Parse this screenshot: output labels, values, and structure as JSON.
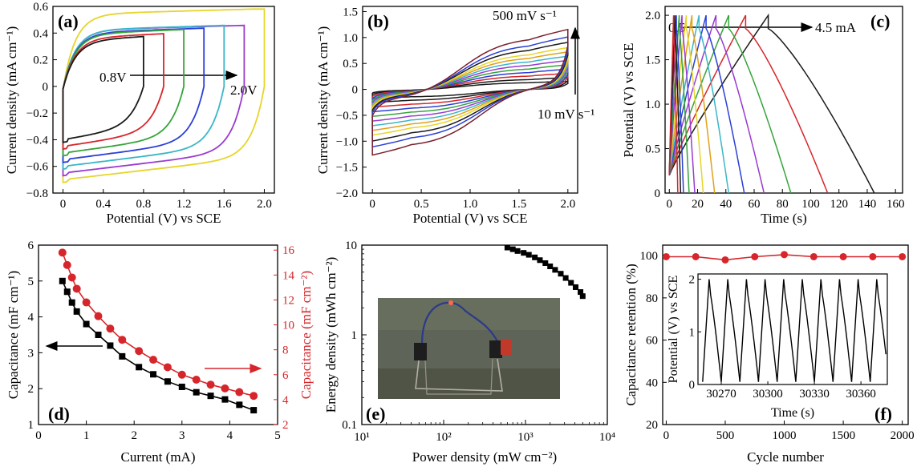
{
  "chart_data": [
    {
      "panel": "(a)",
      "type": "line",
      "xlabel": "Potential (V) vs SCE",
      "ylabel": "Current density (mA cm⁻¹)",
      "xlim": [
        -0.1,
        2.1
      ],
      "ylim": [
        -0.8,
        0.6
      ],
      "xticks": [
        "0",
        "0.4",
        "0.8",
        "1.2",
        "1.6",
        "2.0"
      ],
      "yticks": [
        "−0.8",
        "−0.6",
        "−0.4",
        "−0.2",
        "0",
        "0.2",
        "0.4",
        "0.6"
      ],
      "arrow_start": "0.8V",
      "arrow_end": "2.0V",
      "series": [
        {
          "window": 0.8,
          "top": 0.36,
          "bottom": -0.4,
          "color": "#1a1a1a"
        },
        {
          "window": 1.0,
          "top": 0.38,
          "bottom": -0.45,
          "color": "#d6262b"
        },
        {
          "window": 1.2,
          "top": 0.41,
          "bottom": -0.5,
          "color": "#36a43a"
        },
        {
          "window": 1.4,
          "top": 0.42,
          "bottom": -0.55,
          "color": "#2b3fd6"
        },
        {
          "window": 1.6,
          "top": 0.44,
          "bottom": -0.6,
          "color": "#39b6c8"
        },
        {
          "window": 1.8,
          "top": 0.44,
          "bottom": -0.65,
          "color": "#9a3ad1"
        },
        {
          "window": 2.0,
          "top": 0.56,
          "bottom": -0.7,
          "color": "#e6d52a"
        }
      ]
    },
    {
      "panel": "(b)",
      "type": "line",
      "xlabel": "Potential (V) vs SCE",
      "ylabel": "Current density (mA cm⁻¹)",
      "xlim": [
        -0.1,
        2.1
      ],
      "ylim": [
        -2.0,
        1.6
      ],
      "xticks": [
        "0",
        "0.5",
        "1.0",
        "1.5",
        "2.0"
      ],
      "yticks": [
        "−2.0",
        "−1.5",
        "−1.0",
        "−0.5",
        "0",
        "0.5",
        "1.0",
        "1.5"
      ],
      "annotation_top": "500 mV s⁻¹",
      "annotation_bottom": "10 mV s⁻¹",
      "series": [
        {
          "scan_rate": 10,
          "amp": 0.15,
          "color": "#1a1a1a"
        },
        {
          "scan_rate": 20,
          "amp": 0.22,
          "color": "#1a1a1a"
        },
        {
          "scan_rate": 50,
          "amp": 0.3,
          "color": "#d6262b"
        },
        {
          "scan_rate": 100,
          "amp": 0.38,
          "color": "#2b3fd6"
        },
        {
          "scan_rate": 150,
          "amp": 0.46,
          "color": "#36a43a"
        },
        {
          "scan_rate": 200,
          "amp": 0.54,
          "color": "#9a3ad1"
        },
        {
          "scan_rate": 250,
          "amp": 0.62,
          "color": "#39b6c8"
        },
        {
          "scan_rate": 300,
          "amp": 0.7,
          "color": "#e0a11a"
        },
        {
          "scan_rate": 350,
          "amp": 0.78,
          "color": "#e6d52a"
        },
        {
          "scan_rate": 400,
          "amp": 0.88,
          "color": "#1a1a1a"
        },
        {
          "scan_rate": 450,
          "amp": 0.98,
          "color": "#2b3fd6"
        },
        {
          "scan_rate": 500,
          "amp": 1.12,
          "color": "#7a1f2b"
        }
      ]
    },
    {
      "panel": "(c)",
      "type": "line",
      "xlabel": "Time (s)",
      "ylabel": "Potential (V) vs SCE",
      "xlim": [
        -3,
        165
      ],
      "ylim": [
        0,
        2.1
      ],
      "xticks": [
        "0",
        "20",
        "40",
        "60",
        "80",
        "100",
        "120",
        "140",
        "160"
      ],
      "yticks": [
        "0",
        "0.5",
        "1.0",
        "1.5",
        "2.0"
      ],
      "annotation_start": "0.5",
      "annotation_end": "4.5 mA",
      "series": [
        {
          "current": 4.5,
          "tc": 3,
          "td": 3,
          "color": "#d6262b"
        },
        {
          "current": 4.0,
          "tc": 4,
          "td": 4,
          "color": "#1a1a1a"
        },
        {
          "current": 3.5,
          "tc": 5,
          "td": 5,
          "color": "#2b3fd6"
        },
        {
          "current": 3.0,
          "tc": 7,
          "td": 7,
          "color": "#36a43a"
        },
        {
          "current": 2.5,
          "tc": 9,
          "td": 9,
          "color": "#9a3ad1"
        },
        {
          "current": 2.0,
          "tc": 12,
          "td": 12,
          "color": "#e6d52a"
        },
        {
          "current": 1.75,
          "tc": 16,
          "td": 16,
          "color": "#e0a11a"
        },
        {
          "current": 1.5,
          "tc": 21,
          "td": 21,
          "color": "#39b6c8"
        },
        {
          "current": 1.25,
          "tc": 26,
          "td": 27,
          "color": "#2b3fd6"
        },
        {
          "current": 1.0,
          "tc": 33,
          "td": 34,
          "color": "#9a3ad1"
        },
        {
          "current": 0.8,
          "tc": 42,
          "td": 44,
          "color": "#36a43a"
        },
        {
          "current": 0.65,
          "tc": 54,
          "td": 58,
          "color": "#d6262b"
        },
        {
          "current": 0.5,
          "tc": 70,
          "td": 75,
          "color": "#1a1a1a"
        }
      ]
    },
    {
      "panel": "(d)",
      "type": "line",
      "xlabel": "Current (mA)",
      "ylabel": "Capacitance (mF cm⁻¹)",
      "ylabel_right": "Capacitance (mF cm⁻²)",
      "xlim": [
        0,
        5
      ],
      "ylim": [
        1,
        6
      ],
      "ylim_right": [
        2,
        16.4
      ],
      "xticks": [
        "0",
        "1",
        "2",
        "3",
        "4",
        "5"
      ],
      "yticks": [
        "1",
        "2",
        "3",
        "4",
        "5",
        "6"
      ],
      "yticks_right": [
        "2",
        "4",
        "6",
        "8",
        "10",
        "12",
        "14",
        "16"
      ],
      "x": [
        0.5,
        0.6,
        0.7,
        0.8,
        1.0,
        1.25,
        1.5,
        1.75,
        2.1,
        2.4,
        2.7,
        3.0,
        3.3,
        3.6,
        3.9,
        4.2,
        4.5
      ],
      "series": [
        {
          "name": "",
          "axis": "left",
          "color": "#000000",
          "marker": "square",
          "values": [
            5.0,
            4.7,
            4.4,
            4.15,
            3.8,
            3.5,
            3.2,
            2.9,
            2.6,
            2.4,
            2.2,
            2.05,
            1.9,
            1.8,
            1.7,
            1.55,
            1.4
          ]
        },
        {
          "name": "",
          "axis": "right",
          "color": "#d6262b",
          "marker": "circle",
          "values": [
            15.8,
            14.8,
            13.8,
            12.9,
            11.8,
            10.7,
            9.7,
            8.8,
            7.9,
            7.2,
            6.6,
            6.0,
            5.6,
            5.2,
            4.9,
            4.6,
            4.3
          ]
        }
      ]
    },
    {
      "panel": "(e)",
      "type": "line",
      "xlabel": "Power density (mW cm⁻²)",
      "ylabel": "Energy density (mWh cm⁻²)",
      "xscale": "log",
      "yscale": "log",
      "xlim": [
        10,
        10000
      ],
      "ylim": [
        0.1,
        10
      ],
      "xticks": [
        "10¹",
        "10²",
        "10³",
        "10⁴"
      ],
      "yticks": [
        "0.1",
        "1",
        "10"
      ],
      "x": [
        600,
        700,
        800,
        950,
        1100,
        1300,
        1500,
        1750,
        2000,
        2300,
        2700,
        3100,
        3600,
        4100,
        4700,
        5000
      ],
      "series": [
        {
          "name": "",
          "color": "#000000",
          "marker": "square",
          "values": [
            9.4,
            9.0,
            8.6,
            8.2,
            7.8,
            7.3,
            6.8,
            6.3,
            5.8,
            5.3,
            4.8,
            4.3,
            3.8,
            3.4,
            3.0,
            2.7
          ]
        }
      ]
    },
    {
      "panel": "(f)",
      "type": "line",
      "xlabel": "Cycle number",
      "ylabel": "Capacitance retention (%)",
      "xlim": [
        -30,
        2050
      ],
      "ylim": [
        20,
        105
      ],
      "xticks": [
        "0",
        "500",
        "1000",
        "1500",
        "2000"
      ],
      "yticks": [
        "20",
        "40",
        "60",
        "80",
        "100"
      ],
      "x": [
        0,
        250,
        500,
        750,
        1000,
        1250,
        1500,
        1750,
        2000
      ],
      "series": [
        {
          "name": "",
          "color": "#d6262b",
          "marker": "circle",
          "values": [
            99.5,
            99.5,
            98.0,
            99.5,
            100.5,
            99.5,
            99.5,
            99.5,
            99.5
          ]
        }
      ],
      "inset": {
        "xlabel": "Time (s)",
        "ylabel": "Potential (V) vs SCE",
        "xlim": [
          30255,
          30377
        ],
        "ylim": [
          0,
          2.1
        ],
        "xticks": [
          "30270",
          "30300",
          "30330",
          "30360"
        ],
        "yticks": [
          "0",
          "1",
          "2"
        ],
        "cycles": 10,
        "cycle_start": 30258,
        "cycle_period": 12.0
      }
    }
  ]
}
